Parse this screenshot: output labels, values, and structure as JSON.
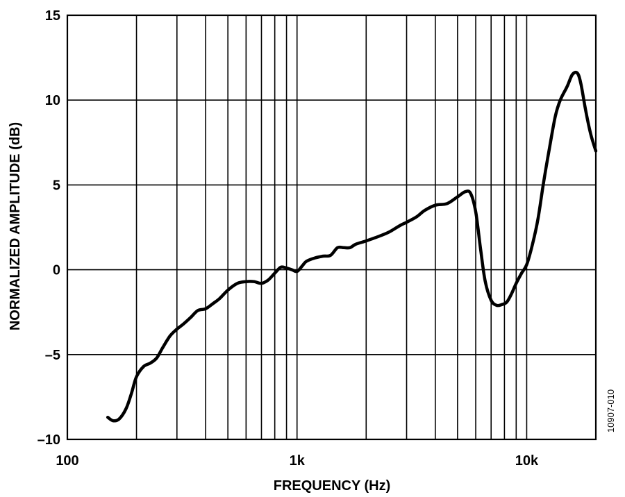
{
  "chart_data": {
    "type": "line",
    "xlabel": "FREQUENCY (Hz)",
    "ylabel": "NORMALIZED AMPLITUDE (dB)",
    "figure_id": "10907-010",
    "x_scale": "log",
    "xlim": [
      100,
      20000
    ],
    "ylim": [
      -10,
      15
    ],
    "x_ticks": [
      {
        "value": 100,
        "label": "100"
      },
      {
        "value": 1000,
        "label": "1k"
      },
      {
        "value": 10000,
        "label": "10k"
      }
    ],
    "y_ticks": [
      {
        "value": 15,
        "label": "15"
      },
      {
        "value": 10,
        "label": "10"
      },
      {
        "value": 5,
        "label": "5"
      },
      {
        "value": 0,
        "label": "0"
      },
      {
        "value": -5,
        "label": "–5"
      },
      {
        "value": -10,
        "label": "–10"
      }
    ],
    "grid": true,
    "series": [
      {
        "x": [
          150,
          158,
          168,
          180,
          190,
          200,
          215,
          230,
          245,
          260,
          280,
          300,
          320,
          345,
          370,
          400,
          430,
          460,
          500,
          550,
          600,
          650,
          700,
          750,
          800,
          850,
          900,
          950,
          1000,
          1050,
          1100,
          1200,
          1300,
          1400,
          1500,
          1600,
          1700,
          1800,
          2000,
          2200,
          2500,
          2800,
          3000,
          3300,
          3600,
          4000,
          4500,
          5000,
          5400,
          5700,
          6000,
          6300,
          6600,
          7000,
          7400,
          7800,
          8200,
          8600,
          9000,
          9500,
          10000,
          10600,
          11200,
          11800,
          12500,
          13300,
          14000,
          15000,
          15800,
          16600,
          17200,
          18000,
          19000,
          20000
        ],
        "y": [
          -8.7,
          -8.9,
          -8.8,
          -8.2,
          -7.3,
          -6.3,
          -5.7,
          -5.5,
          -5.2,
          -4.6,
          -3.9,
          -3.5,
          -3.2,
          -2.8,
          -2.4,
          -2.3,
          -2.0,
          -1.7,
          -1.2,
          -0.8,
          -0.7,
          -0.7,
          -0.8,
          -0.6,
          -0.2,
          0.15,
          0.1,
          0.0,
          -0.1,
          0.2,
          0.5,
          0.7,
          0.8,
          0.85,
          1.3,
          1.3,
          1.3,
          1.5,
          1.7,
          1.9,
          2.2,
          2.6,
          2.8,
          3.1,
          3.5,
          3.8,
          3.9,
          4.3,
          4.6,
          4.5,
          3.4,
          1.2,
          -0.7,
          -1.8,
          -2.1,
          -2.05,
          -1.9,
          -1.4,
          -0.8,
          -0.2,
          0.3,
          1.5,
          3.0,
          5.0,
          7.0,
          9.0,
          10.0,
          10.8,
          11.5,
          11.6,
          11.0,
          9.5,
          8.0,
          7.0
        ]
      }
    ]
  }
}
